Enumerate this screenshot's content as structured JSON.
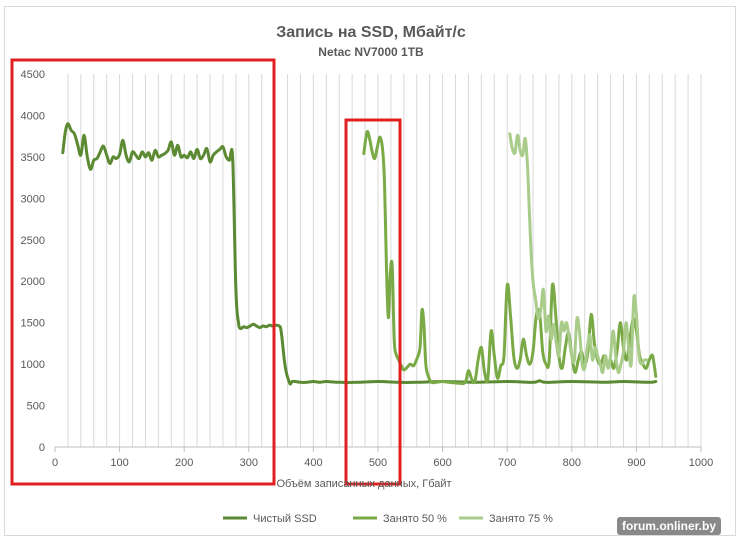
{
  "chart_data": {
    "type": "line",
    "title": "Запись на SSD, Мбайт/с",
    "subtitle": "Netac NV7000 1TB",
    "xlabel": "Объём записанных данных, Гбайт",
    "ylabel": "",
    "xlim": [
      0,
      1000
    ],
    "ylim": [
      0,
      4500
    ],
    "x_ticks": [
      "0",
      "100",
      "200",
      "300",
      "400",
      "500",
      "600",
      "700",
      "800",
      "900",
      "1000"
    ],
    "y_ticks": [
      "0",
      "500",
      "1000",
      "1500",
      "2000",
      "2500",
      "3000",
      "3500",
      "4000",
      "4500"
    ],
    "grid": "vertical",
    "legend_position": "bottom",
    "series": [
      {
        "name": "Чистый SSD",
        "color": "#5b8a32",
        "points": [
          [
            12,
            3550
          ],
          [
            16,
            3800
          ],
          [
            20,
            3900
          ],
          [
            25,
            3820
          ],
          [
            30,
            3780
          ],
          [
            35,
            3650
          ],
          [
            40,
            3520
          ],
          [
            45,
            3760
          ],
          [
            50,
            3500
          ],
          [
            55,
            3350
          ],
          [
            60,
            3460
          ],
          [
            65,
            3480
          ],
          [
            70,
            3560
          ],
          [
            75,
            3630
          ],
          [
            80,
            3520
          ],
          [
            85,
            3420
          ],
          [
            90,
            3500
          ],
          [
            95,
            3480
          ],
          [
            100,
            3530
          ],
          [
            105,
            3700
          ],
          [
            110,
            3520
          ],
          [
            115,
            3440
          ],
          [
            120,
            3560
          ],
          [
            125,
            3520
          ],
          [
            130,
            3480
          ],
          [
            135,
            3560
          ],
          [
            140,
            3500
          ],
          [
            145,
            3550
          ],
          [
            150,
            3460
          ],
          [
            155,
            3580
          ],
          [
            160,
            3500
          ],
          [
            165,
            3520
          ],
          [
            170,
            3540
          ],
          [
            175,
            3580
          ],
          [
            180,
            3680
          ],
          [
            185,
            3520
          ],
          [
            190,
            3640
          ],
          [
            195,
            3500
          ],
          [
            200,
            3520
          ],
          [
            205,
            3490
          ],
          [
            210,
            3560
          ],
          [
            215,
            3480
          ],
          [
            220,
            3590
          ],
          [
            225,
            3480
          ],
          [
            230,
            3520
          ],
          [
            235,
            3600
          ],
          [
            240,
            3440
          ],
          [
            245,
            3520
          ],
          [
            250,
            3560
          ],
          [
            255,
            3590
          ],
          [
            260,
            3620
          ],
          [
            265,
            3500
          ],
          [
            270,
            3460
          ],
          [
            275,
            3480
          ],
          [
            280,
            1900
          ],
          [
            284,
            1500
          ],
          [
            287,
            1430
          ],
          [
            292,
            1450
          ],
          [
            297,
            1440
          ],
          [
            302,
            1460
          ],
          [
            307,
            1480
          ],
          [
            312,
            1460
          ],
          [
            317,
            1440
          ],
          [
            322,
            1460
          ],
          [
            327,
            1450
          ],
          [
            332,
            1470
          ],
          [
            337,
            1460
          ],
          [
            342,
            1470
          ],
          [
            347,
            1460
          ],
          [
            350,
            1400
          ],
          [
            355,
            1050
          ],
          [
            358,
            900
          ],
          [
            361,
            820
          ],
          [
            364,
            760
          ],
          [
            367,
            790
          ],
          [
            372,
            790
          ],
          [
            380,
            780
          ],
          [
            390,
            780
          ],
          [
            400,
            790
          ],
          [
            410,
            780
          ],
          [
            420,
            790
          ],
          [
            440,
            780
          ],
          [
            470,
            780
          ],
          [
            500,
            790
          ],
          [
            530,
            780
          ],
          [
            560,
            780
          ],
          [
            600,
            790
          ],
          [
            650,
            780
          ],
          [
            700,
            790
          ],
          [
            740,
            780
          ],
          [
            750,
            800
          ],
          [
            760,
            780
          ],
          [
            800,
            790
          ],
          [
            850,
            780
          ],
          [
            880,
            790
          ],
          [
            920,
            780
          ],
          [
            930,
            790
          ]
        ]
      },
      {
        "name": "Занято 50 %",
        "color": "#7aaa46",
        "points": [
          [
            478,
            3540
          ],
          [
            483,
            3800
          ],
          [
            487,
            3720
          ],
          [
            491,
            3560
          ],
          [
            495,
            3480
          ],
          [
            499,
            3620
          ],
          [
            503,
            3740
          ],
          [
            507,
            3600
          ],
          [
            510,
            3200
          ],
          [
            513,
            2200
          ],
          [
            516,
            1560
          ],
          [
            519,
            2100
          ],
          [
            522,
            2180
          ],
          [
            525,
            1300
          ],
          [
            528,
            1120
          ],
          [
            532,
            1050
          ],
          [
            536,
            980
          ],
          [
            540,
            930
          ],
          [
            545,
            960
          ],
          [
            550,
            1000
          ],
          [
            555,
            980
          ],
          [
            560,
            1060
          ],
          [
            565,
            1200
          ],
          [
            568,
            1650
          ],
          [
            571,
            1480
          ],
          [
            574,
            1000
          ],
          [
            578,
            850
          ],
          [
            583,
            780
          ],
          [
            590,
            780
          ],
          [
            600,
            790
          ],
          [
            610,
            780
          ],
          [
            625,
            770
          ],
          [
            635,
            780
          ],
          [
            640,
            920
          ],
          [
            645,
            820
          ],
          [
            650,
            790
          ],
          [
            655,
            1050
          ],
          [
            660,
            1200
          ],
          [
            665,
            900
          ],
          [
            670,
            820
          ],
          [
            675,
            1400
          ],
          [
            680,
            1100
          ],
          [
            685,
            830
          ],
          [
            690,
            980
          ],
          [
            695,
            1100
          ],
          [
            700,
            1950
          ],
          [
            705,
            1600
          ],
          [
            710,
            1100
          ],
          [
            715,
            950
          ],
          [
            720,
            1050
          ],
          [
            725,
            1300
          ],
          [
            730,
            1100
          ],
          [
            735,
            1000
          ],
          [
            740,
            1150
          ],
          [
            745,
            1580
          ],
          [
            750,
            1620
          ],
          [
            755,
            1150
          ],
          [
            760,
            1000
          ],
          [
            765,
            1050
          ],
          [
            770,
            1950
          ],
          [
            775,
            1600
          ],
          [
            780,
            1100
          ],
          [
            785,
            950
          ],
          [
            790,
            1200
          ],
          [
            795,
            1380
          ],
          [
            800,
            1100
          ],
          [
            805,
            900
          ],
          [
            810,
            1050
          ],
          [
            815,
            1150
          ],
          [
            820,
            1000
          ],
          [
            825,
            1150
          ],
          [
            830,
            1600
          ],
          [
            835,
            1250
          ],
          [
            840,
            1050
          ],
          [
            845,
            1000
          ],
          [
            850,
            1100
          ],
          [
            855,
            1000
          ],
          [
            860,
            1050
          ],
          [
            865,
            950
          ],
          [
            870,
            1150
          ],
          [
            875,
            1500
          ],
          [
            880,
            1200
          ],
          [
            885,
            1050
          ],
          [
            890,
            1300
          ],
          [
            895,
            1550
          ],
          [
            900,
            1400
          ],
          [
            905,
            1100
          ],
          [
            910,
            1000
          ],
          [
            915,
            950
          ],
          [
            920,
            1050
          ],
          [
            925,
            1100
          ],
          [
            930,
            850
          ]
        ]
      },
      {
        "name": "Занято 75 %",
        "color": "#a9cc8a",
        "points": [
          [
            704,
            3780
          ],
          [
            708,
            3600
          ],
          [
            712,
            3550
          ],
          [
            716,
            3760
          ],
          [
            720,
            3580
          ],
          [
            724,
            3520
          ],
          [
            728,
            3720
          ],
          [
            732,
            3300
          ],
          [
            736,
            2500
          ],
          [
            740,
            2000
          ],
          [
            744,
            1780
          ],
          [
            748,
            1560
          ],
          [
            752,
            1650
          ],
          [
            756,
            1900
          ],
          [
            760,
            1400
          ],
          [
            764,
            1580
          ],
          [
            768,
            1300
          ],
          [
            772,
            1480
          ],
          [
            776,
            1260
          ],
          [
            780,
            1100
          ],
          [
            784,
            1500
          ],
          [
            788,
            1400
          ],
          [
            792,
            1500
          ],
          [
            796,
            1300
          ],
          [
            800,
            1100
          ],
          [
            804,
            1050
          ],
          [
            808,
            1550
          ],
          [
            812,
            1380
          ],
          [
            816,
            1000
          ],
          [
            820,
            950
          ],
          [
            824,
            1200
          ],
          [
            828,
            1350
          ],
          [
            832,
            1050
          ],
          [
            836,
            1200
          ],
          [
            840,
            1100
          ],
          [
            844,
            1000
          ],
          [
            848,
            900
          ],
          [
            852,
            1100
          ],
          [
            856,
            950
          ],
          [
            860,
            1100
          ],
          [
            864,
            1400
          ],
          [
            868,
            1100
          ],
          [
            872,
            900
          ],
          [
            876,
            1000
          ],
          [
            880,
            1150
          ],
          [
            884,
            1500
          ],
          [
            888,
            1200
          ],
          [
            892,
            1000
          ],
          [
            896,
            1800
          ],
          [
            900,
            1600
          ],
          [
            904,
            1100
          ],
          [
            908,
            1000
          ],
          [
            912,
            1050
          ],
          [
            916,
            1050
          ]
        ]
      }
    ]
  },
  "annotations": {
    "highlight_boxes_color": "#e02020"
  },
  "watermark": "forum.onliner.by"
}
